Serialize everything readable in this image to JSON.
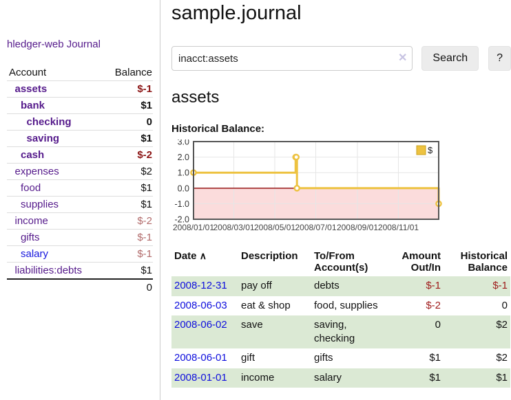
{
  "colors": {
    "link_purple": "#551a8b",
    "link_blue": "#1515dd",
    "negative_dark": "#8b1414",
    "negative_muted": "#b26b6b",
    "negative_table": "#9e1b1b",
    "row_stripe_green": "#dbe9d4",
    "series_yellow": "#edc240",
    "zero_line": "#8b0000",
    "negative_region": "#fbdcdc",
    "chart_border": "#555555",
    "grid": "#e6e6e6"
  },
  "sidebar": {
    "app_title": "hledger-web",
    "journal_link": "Journal",
    "accounts_table": {
      "headers": {
        "account": "Account",
        "balance": "Balance"
      },
      "rows": [
        {
          "name": "assets",
          "depth": 1,
          "balance": "$-1",
          "bold": true,
          "neg": "dark"
        },
        {
          "name": "bank",
          "depth": 2,
          "balance": "$1",
          "bold": true,
          "neg": null
        },
        {
          "name": "checking",
          "depth": 3,
          "balance": "0",
          "bold": true,
          "neg": null
        },
        {
          "name": "saving",
          "depth": 3,
          "balance": "$1",
          "bold": true,
          "neg": null
        },
        {
          "name": "cash",
          "depth": 2,
          "balance": "$-2",
          "bold": true,
          "neg": "dark"
        },
        {
          "name": "expenses",
          "depth": 1,
          "balance": "$2",
          "bold": false,
          "neg": null
        },
        {
          "name": "food",
          "depth": 2,
          "balance": "$1",
          "bold": false,
          "neg": null
        },
        {
          "name": "supplies",
          "depth": 2,
          "balance": "$1",
          "bold": false,
          "neg": null
        },
        {
          "name": "income",
          "depth": 1,
          "balance": "$-2",
          "bold": false,
          "neg": "muted"
        },
        {
          "name": "gifts",
          "depth": 2,
          "balance": "$-1",
          "bold": false,
          "neg": "muted"
        },
        {
          "name": "salary",
          "depth": 2,
          "balance": "$-1",
          "bold": false,
          "neg": "muted",
          "blue": true
        },
        {
          "name": "liabilities:debts",
          "depth": 1,
          "balance": "$1",
          "bold": false,
          "neg": null
        }
      ],
      "total": "0"
    }
  },
  "header": {
    "title": "sample.journal"
  },
  "search": {
    "value": "inacct:assets",
    "clear_icon": "✕",
    "search_label": "Search",
    "help_label": "?"
  },
  "account_page": {
    "heading": "assets",
    "chart_label": "Historical Balance:"
  },
  "chart_data": {
    "type": "line",
    "title": "Historical Balance:",
    "step": true,
    "series": [
      {
        "name": "$",
        "color": "#edc240",
        "points": [
          {
            "date": "2008/01/01",
            "value": 1
          },
          {
            "date": "2008/06/01",
            "value": 2
          },
          {
            "date": "2008/06/02",
            "value": 2
          },
          {
            "date": "2008/06/03",
            "value": 0
          },
          {
            "date": "2008/12/31",
            "value": -1
          }
        ]
      }
    ],
    "x_ticks": [
      "2008/01/01",
      "2008/03/01",
      "2008/05/01",
      "2008/07/01",
      "2008/09/01",
      "2008/11/01"
    ],
    "x_range": [
      "2008/01/01",
      "2008/12/31"
    ],
    "y_ticks": [
      "3.0",
      "2.0",
      "1.0",
      "0.0",
      "-1.0",
      "-2.0"
    ],
    "ylim": [
      -2,
      3
    ],
    "grid": true,
    "legend": {
      "label": "$",
      "position": "top-right"
    },
    "negative_region_shaded": true
  },
  "register_table": {
    "headers": {
      "date": "Date",
      "sort_icon": "∧",
      "description": "Description",
      "tofrom": "To/From Account(s)",
      "amount": "Amount Out/In",
      "balance": "Historical Balance"
    },
    "rows": [
      {
        "date": "2008-12-31",
        "description": "pay off",
        "accounts": "debts",
        "amount": "$-1",
        "amount_neg": true,
        "balance": "$-1",
        "balance_neg": true
      },
      {
        "date": "2008-06-03",
        "description": "eat & shop",
        "accounts": "food, supplies",
        "amount": "$-2",
        "amount_neg": true,
        "balance": "0",
        "balance_neg": false
      },
      {
        "date": "2008-06-02",
        "description": "save",
        "accounts": "saving, checking",
        "amount": "0",
        "amount_neg": false,
        "balance": "$2",
        "balance_neg": false
      },
      {
        "date": "2008-06-01",
        "description": "gift",
        "accounts": "gifts",
        "amount": "$1",
        "amount_neg": false,
        "balance": "$2",
        "balance_neg": false
      },
      {
        "date": "2008-01-01",
        "description": "income",
        "accounts": "salary",
        "amount": "$1",
        "amount_neg": false,
        "balance": "$1",
        "balance_neg": false
      }
    ]
  }
}
